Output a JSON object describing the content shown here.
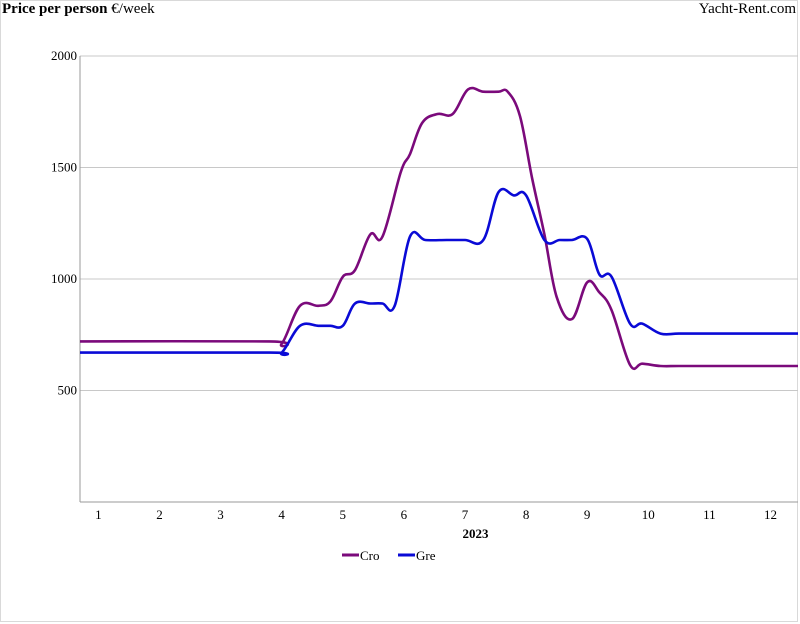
{
  "header": {
    "title_bold": "Price per person",
    "title_unit": "€/week",
    "brand": "Yacht-Rent.com"
  },
  "chart_data": {
    "type": "line",
    "title": "Price per person €/week",
    "xlabel": "2023",
    "ylabel": "",
    "x_ticks": [
      "1",
      "2",
      "3",
      "4",
      "5",
      "6",
      "7",
      "8",
      "9",
      "10",
      "11",
      "12"
    ],
    "y_ticks": [
      "500",
      "1000",
      "1500",
      "2000"
    ],
    "ylim": [
      0,
      2000
    ],
    "xlim": [
      0.7,
      12.45
    ],
    "grid": true,
    "legend_position": "bottom-center",
    "series": [
      {
        "name": "Cro",
        "color": "#7b0a7b",
        "x": [
          0.7,
          3.8,
          4.0,
          4.3,
          4.6,
          4.8,
          5.0,
          5.2,
          5.45,
          5.65,
          5.95,
          6.1,
          6.3,
          6.55,
          6.8,
          7.05,
          7.3,
          7.55,
          7.7,
          7.9,
          8.1,
          8.3,
          8.5,
          8.75,
          9.0,
          9.2,
          9.4,
          9.7,
          9.9,
          10.2,
          10.5,
          11.0,
          11.5,
          12.45
        ],
        "y": [
          720,
          720,
          710,
          880,
          880,
          900,
          1010,
          1040,
          1200,
          1190,
          1480,
          1560,
          1700,
          1740,
          1740,
          1850,
          1840,
          1840,
          1840,
          1730,
          1450,
          1200,
          920,
          820,
          985,
          940,
          860,
          615,
          620,
          610,
          610,
          610,
          610,
          610
        ]
      },
      {
        "name": "Gre",
        "color": "#0a0ad6",
        "x": [
          0.7,
          3.8,
          4.0,
          4.3,
          4.6,
          4.8,
          5.0,
          5.2,
          5.45,
          5.65,
          5.85,
          6.1,
          6.35,
          6.7,
          7.0,
          7.3,
          7.55,
          7.8,
          8.0,
          8.3,
          8.55,
          8.75,
          9.0,
          9.2,
          9.4,
          9.7,
          9.9,
          10.2,
          10.5,
          11.0,
          11.5,
          12.45
        ],
        "y": [
          670,
          670,
          670,
          790,
          790,
          790,
          790,
          890,
          890,
          890,
          880,
          1190,
          1175,
          1175,
          1175,
          1175,
          1390,
          1375,
          1375,
          1175,
          1175,
          1175,
          1180,
          1020,
          1010,
          800,
          800,
          755,
          755,
          755,
          755,
          755
        ]
      }
    ]
  }
}
